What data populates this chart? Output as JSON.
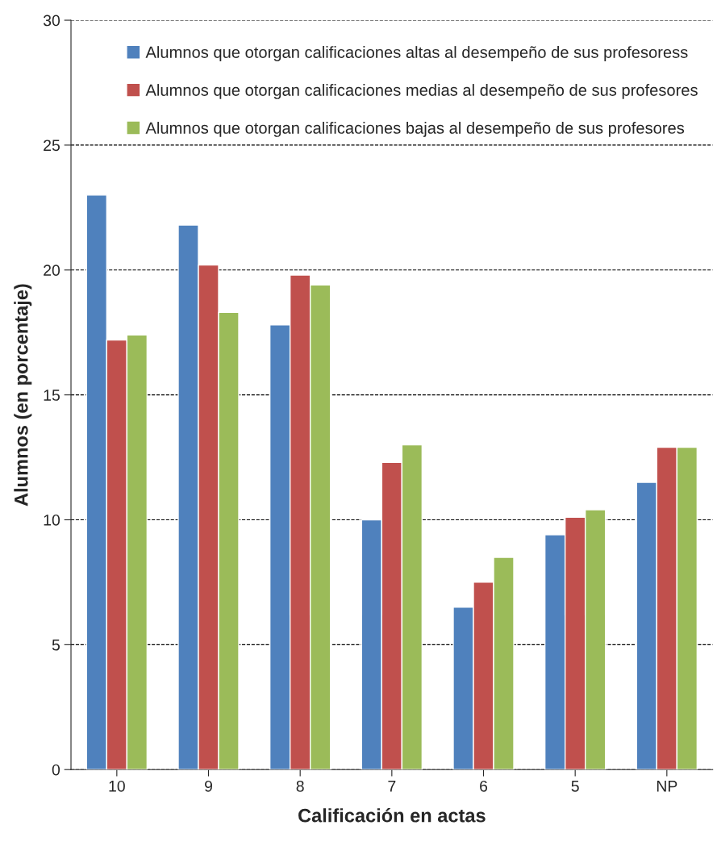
{
  "chart_data": {
    "type": "bar",
    "xlabel": "Calificación en actas",
    "ylabel": "Alumnos (en porcentaje)",
    "categories": [
      "10",
      "9",
      "8",
      "7",
      "6",
      "5",
      "NP"
    ],
    "series": [
      {
        "name": "Alumnos que otorgan calificaciones altas al desempeño de sus profesoress",
        "color": "#4f81bd",
        "values": [
          23.0,
          21.8,
          17.8,
          10.0,
          6.5,
          9.4,
          11.5
        ]
      },
      {
        "name": "Alumnos que otorgan calificaciones medias al desempeño de sus profesores",
        "color": "#c0504d",
        "values": [
          17.2,
          20.2,
          19.8,
          12.3,
          7.5,
          10.1,
          12.9
        ]
      },
      {
        "name": "Alumnos que otorgan calificaciones bajas al desempeño de sus profesores",
        "color": "#9bbb59",
        "values": [
          17.4,
          18.3,
          19.4,
          13.0,
          8.5,
          10.4,
          12.9
        ]
      }
    ],
    "ylim": [
      0,
      30
    ],
    "yticks": [
      0,
      5,
      10,
      15,
      20,
      25,
      30
    ],
    "grid": "y",
    "legend": "top right"
  }
}
